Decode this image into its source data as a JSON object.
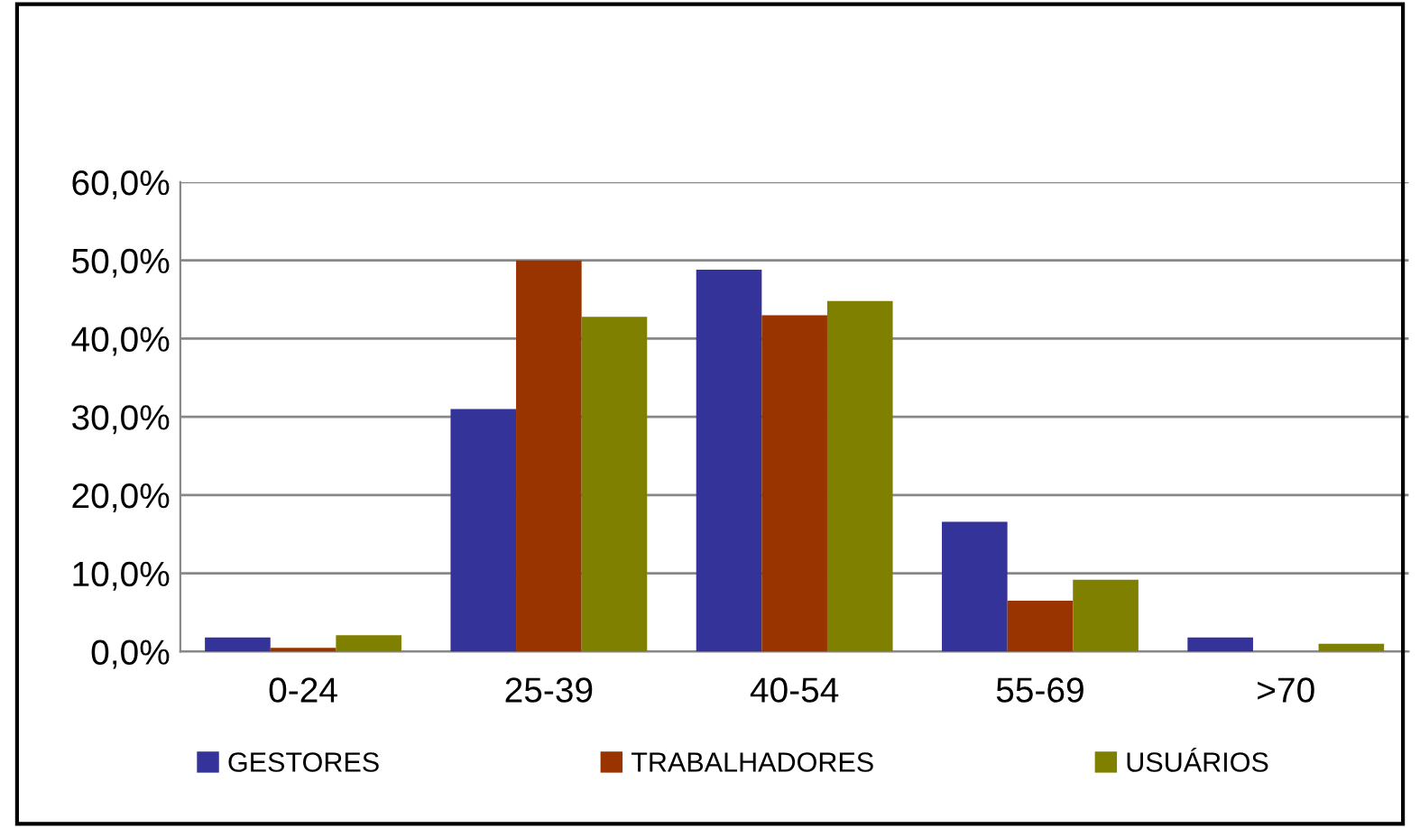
{
  "chart_data": {
    "type": "bar",
    "categories": [
      "0-24",
      "25-39",
      "40-54",
      "55-69",
      ">70"
    ],
    "series": [
      {
        "name": "GESTORES",
        "color": "#333399",
        "values": [
          1.8,
          31.0,
          48.8,
          16.6,
          1.8
        ]
      },
      {
        "name": "TRABALHADORES",
        "color": "#993300",
        "values": [
          0.5,
          50.0,
          43.0,
          6.5,
          null
        ]
      },
      {
        "name": "USUÁRIOS",
        "color": "#808000",
        "values": [
          2.1,
          42.8,
          44.8,
          9.2,
          1.0
        ]
      }
    ],
    "ylim": [
      0,
      60
    ],
    "yticks": [
      {
        "value": 0,
        "label": "0,0%"
      },
      {
        "value": 10,
        "label": "10,0%"
      },
      {
        "value": 20,
        "label": "20,0%"
      },
      {
        "value": 30,
        "label": "30,0%"
      },
      {
        "value": 40,
        "label": "40,0%"
      },
      {
        "value": 50,
        "label": "50,0%"
      },
      {
        "value": 60,
        "label": "60,0%"
      }
    ],
    "grid": "y",
    "legend": "bottom"
  }
}
